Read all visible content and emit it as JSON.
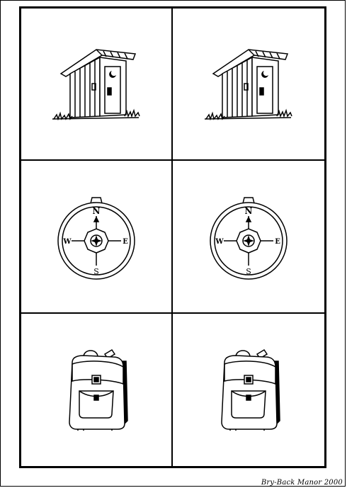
{
  "cards": [
    {
      "icon": "outhouse-icon"
    },
    {
      "icon": "outhouse-icon"
    },
    {
      "icon": "compass-icon",
      "north": "N",
      "south": "S",
      "east": "E",
      "west": "W"
    },
    {
      "icon": "compass-icon",
      "north": "N",
      "south": "S",
      "east": "E",
      "west": "W"
    },
    {
      "icon": "backpack-icon"
    },
    {
      "icon": "backpack-icon"
    }
  ],
  "credit": "Bry-Back Manor 2000",
  "colors": {
    "ink": "#000000",
    "paper": "#ffffff"
  }
}
